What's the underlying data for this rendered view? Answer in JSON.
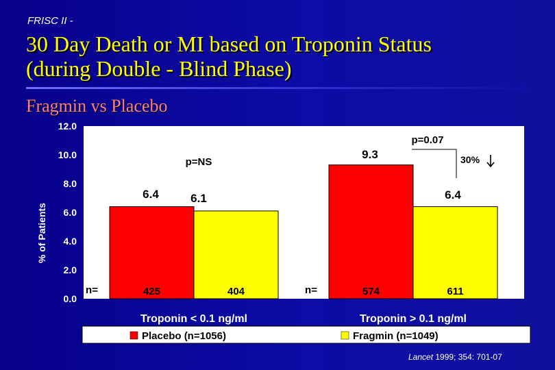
{
  "slide": {
    "tag": "FRISC II -",
    "title_line1": "30 Day Death or MI based on Troponin Status",
    "title_line2": "(during Double - Blind Phase)",
    "subtitle": "Fragmin vs Placebo",
    "citation_journal": "Lancet",
    "citation_rest": " 1999; 354: 701-07"
  },
  "colors": {
    "placebo": "#ff0000",
    "fragmin": "#ffff00",
    "plot_bg": "#ffffff",
    "legend_bg": "#ffffff",
    "title": "#ffff00",
    "subtitle": "#ff8080"
  },
  "chart_data": {
    "type": "bar",
    "ylabel": "% of Patients",
    "ylim": [
      0,
      12
    ],
    "yticks": [
      "0.0",
      "2.0",
      "4.0",
      "6.0",
      "8.0",
      "10.0",
      "12.0"
    ],
    "grid": false,
    "categories": [
      "Troponin < 0.1 ng/ml",
      "Troponin > 0.1 ng/ml"
    ],
    "series": [
      {
        "name": "Placebo (n=1056)",
        "values": [
          6.4,
          9.3
        ],
        "n": [
          "425",
          "574"
        ]
      },
      {
        "name": "Fragmin (n=1049)",
        "values": [
          6.1,
          6.4
        ],
        "n": [
          "404",
          "611"
        ]
      }
    ],
    "n_prefix": "n=",
    "annotations": {
      "left_p": "p=NS",
      "right_p": "p=0.07",
      "reduction": "30%"
    },
    "legend_placement": "bottom"
  }
}
